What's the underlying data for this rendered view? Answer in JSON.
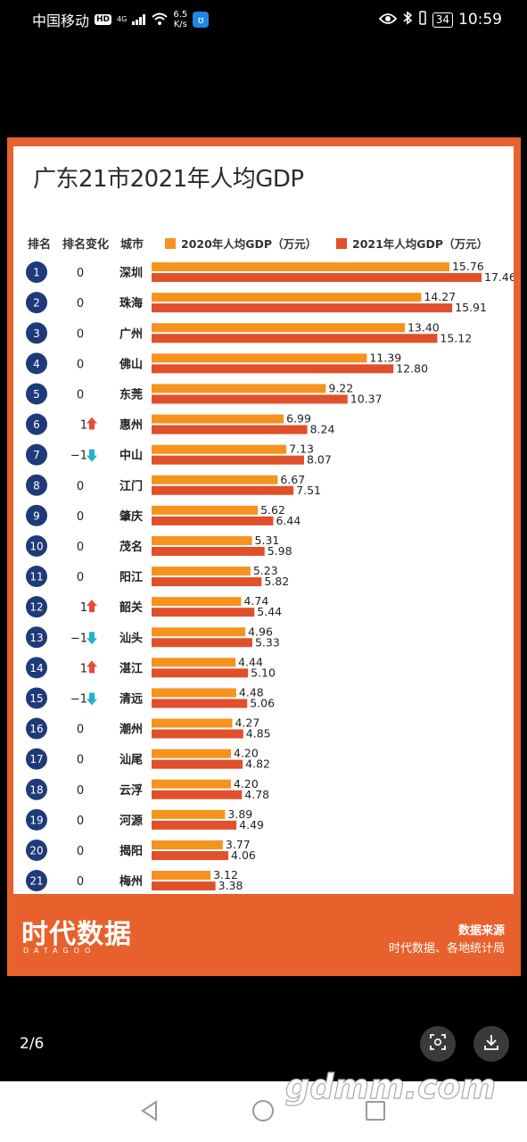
{
  "status_bar": {
    "carrier": "中国移动",
    "hd_badge": "HD",
    "signal_label": "4G",
    "speed_value": "6.5",
    "speed_unit": "K/s",
    "battery": "34",
    "time": "10:59"
  },
  "chart_data": {
    "type": "bar",
    "title": "广东21市2021年人均GDP",
    "headers": {
      "rank": "排名",
      "change": "排名变化",
      "city": "城市"
    },
    "series": [
      {
        "name": "2020年人均GDP（万元）",
        "color": "#f5931e",
        "values": [
          15.76,
          14.27,
          13.4,
          11.39,
          9.22,
          6.99,
          7.13,
          6.67,
          5.62,
          5.31,
          5.23,
          4.74,
          4.96,
          4.44,
          4.48,
          4.27,
          4.2,
          4.2,
          3.89,
          3.77,
          3.12
        ]
      },
      {
        "name": "2021年人均GDP（万元）",
        "color": "#e0502a",
        "values": [
          17.46,
          15.91,
          15.12,
          12.8,
          10.37,
          8.24,
          8.07,
          7.51,
          6.44,
          5.98,
          5.82,
          5.44,
          5.33,
          5.1,
          5.06,
          4.85,
          4.82,
          4.78,
          4.49,
          4.06,
          3.38
        ]
      }
    ],
    "categories": [
      "深圳",
      "珠海",
      "广州",
      "佛山",
      "东莞",
      "惠州",
      "中山",
      "江门",
      "肇庆",
      "茂名",
      "阳江",
      "韶关",
      "汕头",
      "湛江",
      "清远",
      "潮州",
      "汕尾",
      "云浮",
      "河源",
      "揭阳",
      "梅州"
    ],
    "ranks": [
      "1",
      "2",
      "3",
      "4",
      "5",
      "6",
      "7",
      "8",
      "9",
      "10",
      "11",
      "12",
      "13",
      "14",
      "15",
      "16",
      "17",
      "18",
      "19",
      "20",
      "21"
    ],
    "rank_changes": [
      "0",
      "0",
      "0",
      "0",
      "0",
      "1",
      "-1",
      "0",
      "0",
      "0",
      "0",
      "1",
      "-1",
      "1",
      "-1",
      "0",
      "0",
      "0",
      "0",
      "0",
      "0"
    ],
    "up_color": "#e74c3c",
    "down_color": "#1fb5c9",
    "rank_circle_color": "#1f3a78",
    "xlim": [
      0,
      17.46
    ]
  },
  "footer": {
    "logo": "时代数据",
    "logo_sub": "DATAGOO",
    "source_title": "数据来源",
    "source_text": "时代数据、各地统计局"
  },
  "viewer": {
    "page_indicator": "2/6"
  },
  "watermark": "gdmm.com"
}
